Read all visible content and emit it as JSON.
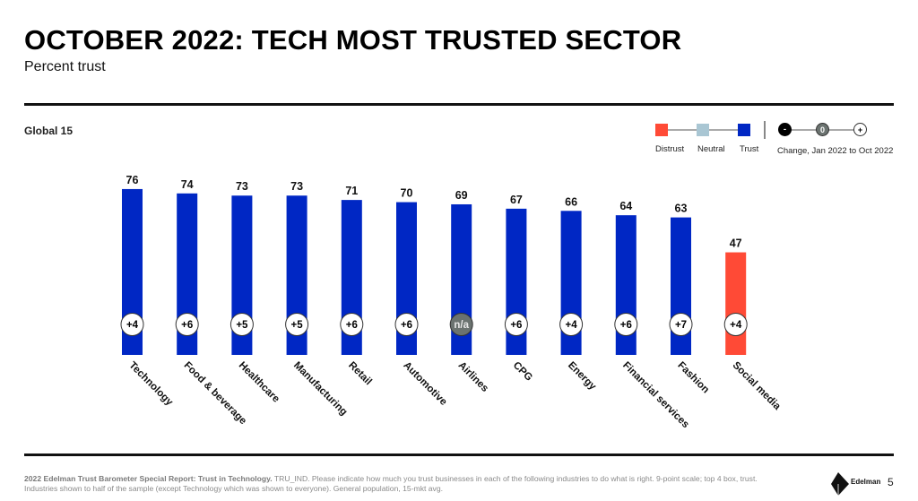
{
  "header": {
    "title": "OCTOBER 2022: TECH MOST TRUSTED SECTOR",
    "subtitle": "Percent trust"
  },
  "region_label": "Global 15",
  "legend": {
    "items": [
      {
        "label": "Distrust",
        "color": "#ff4a36"
      },
      {
        "label": "Neutral",
        "color": "#a9c6d3"
      },
      {
        "label": "Trust",
        "color": "#0027c4"
      }
    ],
    "change_markers": [
      {
        "symbol": "-",
        "meaning": "negative"
      },
      {
        "symbol": "0",
        "meaning": "zero"
      },
      {
        "symbol": "+",
        "meaning": "positive"
      }
    ],
    "change_label": "Change, Jan 2022 to Oct 2022"
  },
  "chart_data": {
    "type": "bar",
    "title": "OCTOBER 2022: TECH MOST TRUSTED SECTOR",
    "subtitle": "Percent trust",
    "xlabel": "",
    "ylabel": "Percent trust",
    "ylim": [
      0,
      80
    ],
    "grid": false,
    "legend_position": "top-right",
    "categories": [
      "Technology",
      "Food & beverage",
      "Healthcare",
      "Manufacturing",
      "Retail",
      "Automotive",
      "Airlines",
      "CPG",
      "Energy",
      "Financial services",
      "Fashion",
      "Social media"
    ],
    "values": [
      76,
      74,
      73,
      73,
      71,
      70,
      69,
      67,
      66,
      64,
      63,
      47
    ],
    "trust_level": [
      "Trust",
      "Trust",
      "Trust",
      "Trust",
      "Trust",
      "Trust",
      "Trust",
      "Trust",
      "Trust",
      "Trust",
      "Trust",
      "Distrust"
    ],
    "change_labels": [
      "+4",
      "+6",
      "+5",
      "+5",
      "+6",
      "+6",
      "n/a",
      "+6",
      "+4",
      "+6",
      "+7",
      "+4"
    ],
    "change_series_name": "Change, Jan 2022 to Oct 2022",
    "colors": {
      "Trust": "#0027c4",
      "Neutral": "#a9c6d3",
      "Distrust": "#ff4a36",
      "na": "#6b7370"
    }
  },
  "footer": {
    "source_bold": "2022 Edelman Trust Barometer Special Report: Trust in Technology.",
    "source_text": " TRU_IND. Please indicate how much you trust businesses in each of the following industries to do what is right. 9-point scale; top 4 box, trust. Industries shown to half of the sample (except Technology which was shown to everyone). General population, 15-mkt avg.",
    "brand": "Edelman",
    "page_number": "5"
  }
}
